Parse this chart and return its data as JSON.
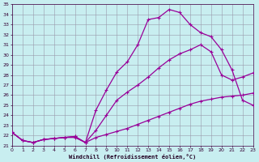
{
  "title": "",
  "xlabel": "Windchill (Refroidissement éolien,°C)",
  "xlim": [
    0,
    23
  ],
  "ylim": [
    21,
    35
  ],
  "xticks": [
    0,
    1,
    2,
    3,
    4,
    5,
    6,
    7,
    8,
    9,
    10,
    11,
    12,
    13,
    14,
    15,
    16,
    17,
    18,
    19,
    20,
    21,
    22,
    23
  ],
  "yticks": [
    21,
    22,
    23,
    24,
    25,
    26,
    27,
    28,
    29,
    30,
    31,
    32,
    33,
    34,
    35
  ],
  "background_color": "#c8eef0",
  "grid_color": "#9999aa",
  "line_color": "#990099",
  "line1_x": [
    0,
    1,
    2,
    3,
    4,
    5,
    6,
    7,
    8,
    9,
    10,
    11,
    12,
    13,
    14,
    15,
    16,
    17,
    18,
    19,
    20,
    21,
    22,
    23
  ],
  "line1_y": [
    22.3,
    21.5,
    21.3,
    21.6,
    21.7,
    21.8,
    21.8,
    21.3,
    21.8,
    22.1,
    22.4,
    22.7,
    23.1,
    23.5,
    23.9,
    24.3,
    24.7,
    25.1,
    25.4,
    25.6,
    25.8,
    25.9,
    26.0,
    26.2
  ],
  "line2_x": [
    0,
    1,
    2,
    3,
    4,
    5,
    6,
    7,
    8,
    9,
    10,
    11,
    12,
    13,
    14,
    15,
    16,
    17,
    18,
    19,
    20,
    21,
    22,
    23
  ],
  "line2_y": [
    22.3,
    21.5,
    21.3,
    21.6,
    21.7,
    21.8,
    21.9,
    21.3,
    22.5,
    24.0,
    25.5,
    26.3,
    27.0,
    27.8,
    28.7,
    29.5,
    30.1,
    30.5,
    31.0,
    30.3,
    28.0,
    27.5,
    27.8,
    28.2
  ],
  "line3_x": [
    0,
    1,
    2,
    3,
    4,
    5,
    6,
    7,
    8,
    9,
    10,
    11,
    12,
    13,
    14,
    15,
    16,
    17,
    18,
    19,
    20,
    21,
    22,
    23
  ],
  "line3_y": [
    22.3,
    21.5,
    21.3,
    21.6,
    21.7,
    21.8,
    21.9,
    21.3,
    24.5,
    26.5,
    28.3,
    29.3,
    31.0,
    33.5,
    33.7,
    34.5,
    34.2,
    33.0,
    32.2,
    31.8,
    30.5,
    28.5,
    25.5,
    25.0
  ]
}
